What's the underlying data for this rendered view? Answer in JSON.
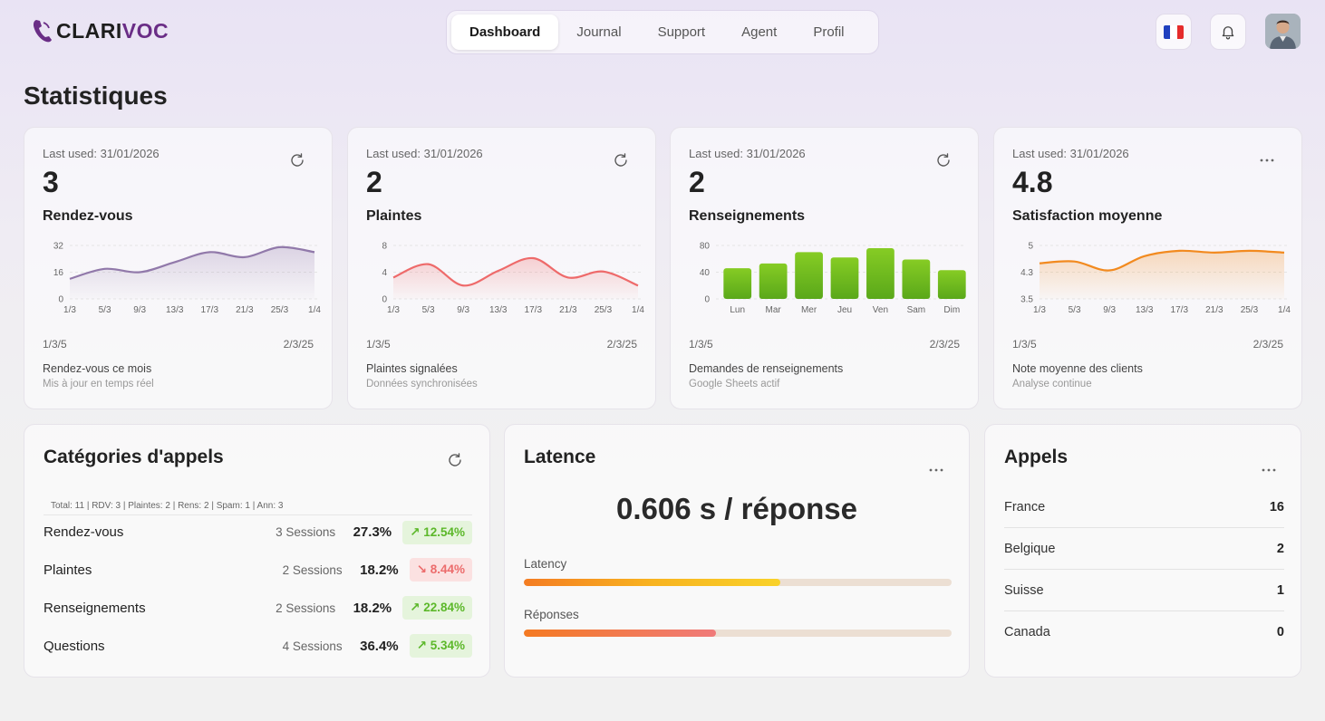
{
  "header": {
    "logo_part1": "CLARI",
    "logo_part2": "VOC",
    "tabs": [
      "Dashboard",
      "Journal",
      "Support",
      "Agent",
      "Profil"
    ],
    "active_tab": "Dashboard",
    "language_icon": "france-flag-icon",
    "notification_icon": "bell-icon"
  },
  "page_title": "Statistiques",
  "stat_cards": [
    {
      "last_used": "Last used: 31/01/2026",
      "value": "3",
      "title": "Rendez-vous",
      "action_icon": "refresh-icon",
      "date_start": "1/3/5",
      "date_end": "2/3/25",
      "footer": "Rendez-vous ce mois",
      "sub": "Mis à jour en temps réel"
    },
    {
      "last_used": "Last used: 31/01/2026",
      "value": "2",
      "title": "Plaintes",
      "action_icon": "refresh-icon",
      "date_start": "1/3/5",
      "date_end": "2/3/25",
      "footer": "Plaintes signalées",
      "sub": "Données synchronisées"
    },
    {
      "last_used": "Last used: 31/01/2026",
      "value": "2",
      "title": "Renseignements",
      "action_icon": "refresh-icon",
      "date_start": "1/3/5",
      "date_end": "2/3/25",
      "footer": "Demandes de renseignements",
      "sub": "Google Sheets actif"
    },
    {
      "last_used": "Last used: 31/01/2026",
      "value": "4.8",
      "title": "Satisfaction moyenne",
      "action_icon": "more-icon",
      "date_start": "1/3/5",
      "date_end": "2/3/25",
      "footer": "Note moyenne des clients",
      "sub": "Analyse continue"
    }
  ],
  "chart_data": [
    {
      "type": "area",
      "x": [
        "1/3",
        "5/3",
        "9/3",
        "13/3",
        "17/3",
        "21/3",
        "25/3",
        "1/4"
      ],
      "yticks": [
        "32",
        "16",
        "0"
      ],
      "ylim": [
        0,
        32
      ],
      "values": [
        12,
        18,
        16,
        22,
        28,
        25,
        31,
        28
      ],
      "color": "#9179aa"
    },
    {
      "type": "area",
      "x": [
        "1/3",
        "5/3",
        "9/3",
        "13/3",
        "17/3",
        "21/3",
        "25/3",
        "1/4"
      ],
      "yticks": [
        "8",
        "4",
        "0"
      ],
      "ylim": [
        0,
        8
      ],
      "values": [
        3.2,
        5.2,
        2.0,
        4.2,
        6.1,
        3.2,
        4.1,
        2.0
      ],
      "color": "#ee6a6a"
    },
    {
      "type": "bar",
      "categories": [
        "Lun",
        "Mar",
        "Mer",
        "Jeu",
        "Ven",
        "Sam",
        "Dim"
      ],
      "yticks": [
        "80",
        "40",
        "0"
      ],
      "ylim": [
        0,
        80
      ],
      "values": [
        46,
        53,
        70,
        62,
        76,
        59,
        43
      ],
      "color": "#6cc11f"
    },
    {
      "type": "area",
      "x": [
        "1/3",
        "5/3",
        "9/3",
        "13/3",
        "17/3",
        "21/3",
        "25/3",
        "1/4"
      ],
      "yticks": [
        "5",
        "4.3",
        "3.5"
      ],
      "ylim": [
        3.5,
        5
      ],
      "values": [
        4.5,
        4.55,
        4.3,
        4.7,
        4.85,
        4.8,
        4.85,
        4.8
      ],
      "color": "#f28a1f"
    }
  ],
  "categories_card": {
    "title": "Catégories d'appels",
    "action_icon": "refresh-icon",
    "summary": "Total: 11 | RDV: 3 | Plaintes: 2 | Rens: 2 | Spam: 1 | Ann: 3",
    "rows": [
      {
        "name": "Rendez-vous",
        "sessions": "3 Sessions",
        "pct": "27.3%",
        "change": "↗ 12.54%",
        "trend": "up"
      },
      {
        "name": "Plaintes",
        "sessions": "2 Sessions",
        "pct": "18.2%",
        "change": "↘ 8.44%",
        "trend": "down"
      },
      {
        "name": "Renseignements",
        "sessions": "2 Sessions",
        "pct": "18.2%",
        "change": "↗ 22.84%",
        "trend": "up"
      },
      {
        "name": "Questions",
        "sessions": "4 Sessions",
        "pct": "36.4%",
        "change": "↗ 5.34%",
        "trend": "up"
      }
    ]
  },
  "latency_card": {
    "title": "Latence",
    "action_icon": "more-icon",
    "value": "0.606 s / réponse",
    "bars": [
      {
        "label": "Latency",
        "fraction": 0.6
      },
      {
        "label": "Réponses",
        "fraction": 0.45
      }
    ]
  },
  "calls_card": {
    "title": "Appels",
    "action_icon": "more-icon",
    "rows": [
      {
        "country": "France",
        "count": "16"
      },
      {
        "country": "Belgique",
        "count": "2"
      },
      {
        "country": "Suisse",
        "count": "1"
      },
      {
        "country": "Canada",
        "count": "0"
      }
    ]
  }
}
